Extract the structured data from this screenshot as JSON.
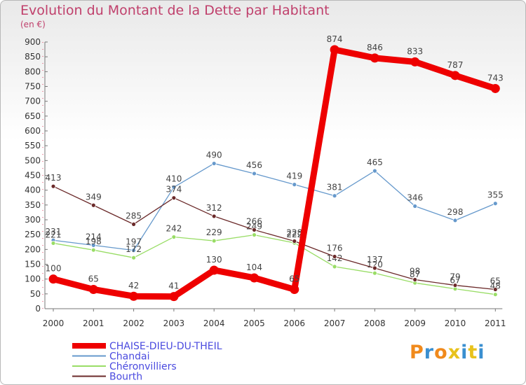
{
  "header": {
    "title": "Evolution du Montant de la Dette par Habitant",
    "subtitle": "(en €)"
  },
  "logo": {
    "text": "Proxiti",
    "colors": [
      "#f08a1c",
      "#3a8fd0",
      "#f08a1c",
      "#e8c21c",
      "#3a8fd0",
      "#e8c21c",
      "#3a8fd0"
    ]
  },
  "chart_data": {
    "type": "line",
    "x": [
      "2000",
      "2001",
      "2002",
      "2003",
      "2004",
      "2005",
      "2006",
      "2007",
      "2008",
      "2009",
      "2010",
      "2011"
    ],
    "ylim": [
      0,
      900
    ],
    "yticks": [
      0,
      50,
      100,
      150,
      200,
      250,
      300,
      350,
      400,
      450,
      500,
      550,
      600,
      650,
      700,
      750,
      800,
      850,
      900
    ],
    "grid": false,
    "legend_position": "bottom-left",
    "series": [
      {
        "name": "CHAISE-DIEU-DU-THEIL",
        "color": "#ee0000",
        "bold": true,
        "values": [
          100,
          65,
          42,
          41,
          130,
          104,
          65,
          874,
          846,
          833,
          787,
          743
        ]
      },
      {
        "name": "Chandai",
        "color": "#6699cc",
        "bold": false,
        "values": [
          231,
          214,
          197,
          410,
          490,
          456,
          419,
          381,
          465,
          346,
          298,
          355
        ]
      },
      {
        "name": "Chéronvilliers",
        "color": "#99dd66",
        "bold": false,
        "values": [
          221,
          198,
          172,
          242,
          229,
          249,
          222,
          142,
          120,
          87,
          67,
          48
        ]
      },
      {
        "name": "Bourth",
        "color": "#6b2a2a",
        "bold": false,
        "values": [
          413,
          349,
          285,
          374,
          312,
          266,
          228,
          176,
          137,
          98,
          79,
          65
        ]
      }
    ]
  }
}
